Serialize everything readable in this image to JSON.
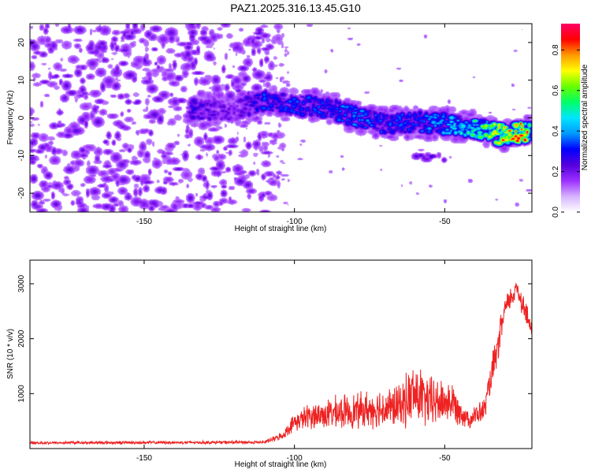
{
  "title": "PAZ1.2025.316.13.45.G10",
  "colors": {
    "snr_line": "#ee2222",
    "colormap": [
      "#ffffff",
      "#d6b3ff",
      "#9b30ff",
      "#5500dd",
      "#0000ff",
      "#0099ff",
      "#00e5ff",
      "#00ff66",
      "#66ff00",
      "#ffff00",
      "#ff9900",
      "#ff0000",
      "#ff0066"
    ]
  },
  "chart_data": [
    {
      "type": "heatmap",
      "xlabel": "Height of straight line (km)",
      "ylabel": "Frequency (Hz)",
      "xlim": [
        -188,
        -21
      ],
      "ylim": [
        -25,
        25
      ],
      "xticks": [
        -150,
        -100,
        -50
      ],
      "xtick_labels": [
        "-150",
        "-100",
        "-50"
      ],
      "yticks": [
        20,
        10,
        0,
        -10,
        -20
      ],
      "ytick_labels": [
        "20",
        "10",
        "0",
        "-10",
        "-20"
      ],
      "colorbar": {
        "label": "Normalized spectral amplitude",
        "range": [
          0.0,
          0.93
        ],
        "ticks": [
          0.0,
          0.2,
          0.4,
          0.6,
          0.8
        ],
        "tick_labels": [
          "0.0",
          "0.2",
          "0.4",
          "0.6",
          "0.8"
        ]
      },
      "ridge": {
        "description": "signal band",
        "points": [
          {
            "x": -135,
            "freq": 2.5,
            "amp": 0.25
          },
          {
            "x": -120,
            "freq": 2.0,
            "amp": 0.15
          },
          {
            "x": -110,
            "freq": 4.5,
            "amp": 0.3
          },
          {
            "x": -100,
            "freq": 3.5,
            "amp": 0.3
          },
          {
            "x": -90,
            "freq": 3.0,
            "amp": 0.3
          },
          {
            "x": -80,
            "freq": 0.5,
            "amp": 0.35
          },
          {
            "x": -70,
            "freq": -1.5,
            "amp": 0.3
          },
          {
            "x": -60,
            "freq": -1.0,
            "amp": 0.3
          },
          {
            "x": -50,
            "freq": -1.5,
            "amp": 0.4
          },
          {
            "x": -40,
            "freq": -2.5,
            "amp": 0.55
          },
          {
            "x": -30,
            "freq": -4.5,
            "amp": 0.8
          },
          {
            "x": -22,
            "freq": -3.5,
            "amp": 0.9
          }
        ],
        "side_blob": {
          "x": -55,
          "freq": -10.5,
          "amp": 0.2
        }
      },
      "noise_region": {
        "xmin": -188,
        "xmax": -110,
        "amp_max": 0.15
      }
    },
    {
      "type": "line",
      "xlabel": "Height of straight line (km)",
      "ylabel": "SNR (10 * v/v)",
      "xlim": [
        -188,
        -21
      ],
      "ylim": [
        0,
        3430
      ],
      "xticks": [
        -150,
        -100,
        -50
      ],
      "xtick_labels": [
        "-150",
        "-100",
        "-50"
      ],
      "yticks": [
        1000,
        2000,
        3000
      ],
      "ytick_labels": [
        "1000",
        "2000",
        "3000"
      ],
      "envelope": [
        {
          "x": -188,
          "base": 100,
          "spread": 60
        },
        {
          "x": -110,
          "base": 110,
          "spread": 70
        },
        {
          "x": -104,
          "base": 220,
          "spread": 150
        },
        {
          "x": -100,
          "base": 450,
          "spread": 380
        },
        {
          "x": -95,
          "base": 550,
          "spread": 550
        },
        {
          "x": -85,
          "base": 600,
          "spread": 700
        },
        {
          "x": -75,
          "base": 650,
          "spread": 800
        },
        {
          "x": -65,
          "base": 700,
          "spread": 900
        },
        {
          "x": -60,
          "base": 900,
          "spread": 1400
        },
        {
          "x": -55,
          "base": 750,
          "spread": 1100
        },
        {
          "x": -48,
          "base": 800,
          "spread": 900
        },
        {
          "x": -42,
          "base": 500,
          "spread": 400
        },
        {
          "x": -37,
          "base": 650,
          "spread": 500
        },
        {
          "x": -33,
          "base": 1600,
          "spread": 800
        },
        {
          "x": -30,
          "base": 2500,
          "spread": 500
        },
        {
          "x": -26,
          "base": 2900,
          "spread": 500
        },
        {
          "x": -24,
          "base": 2600,
          "spread": 600
        },
        {
          "x": -21,
          "base": 2100,
          "spread": 400
        }
      ]
    }
  ]
}
